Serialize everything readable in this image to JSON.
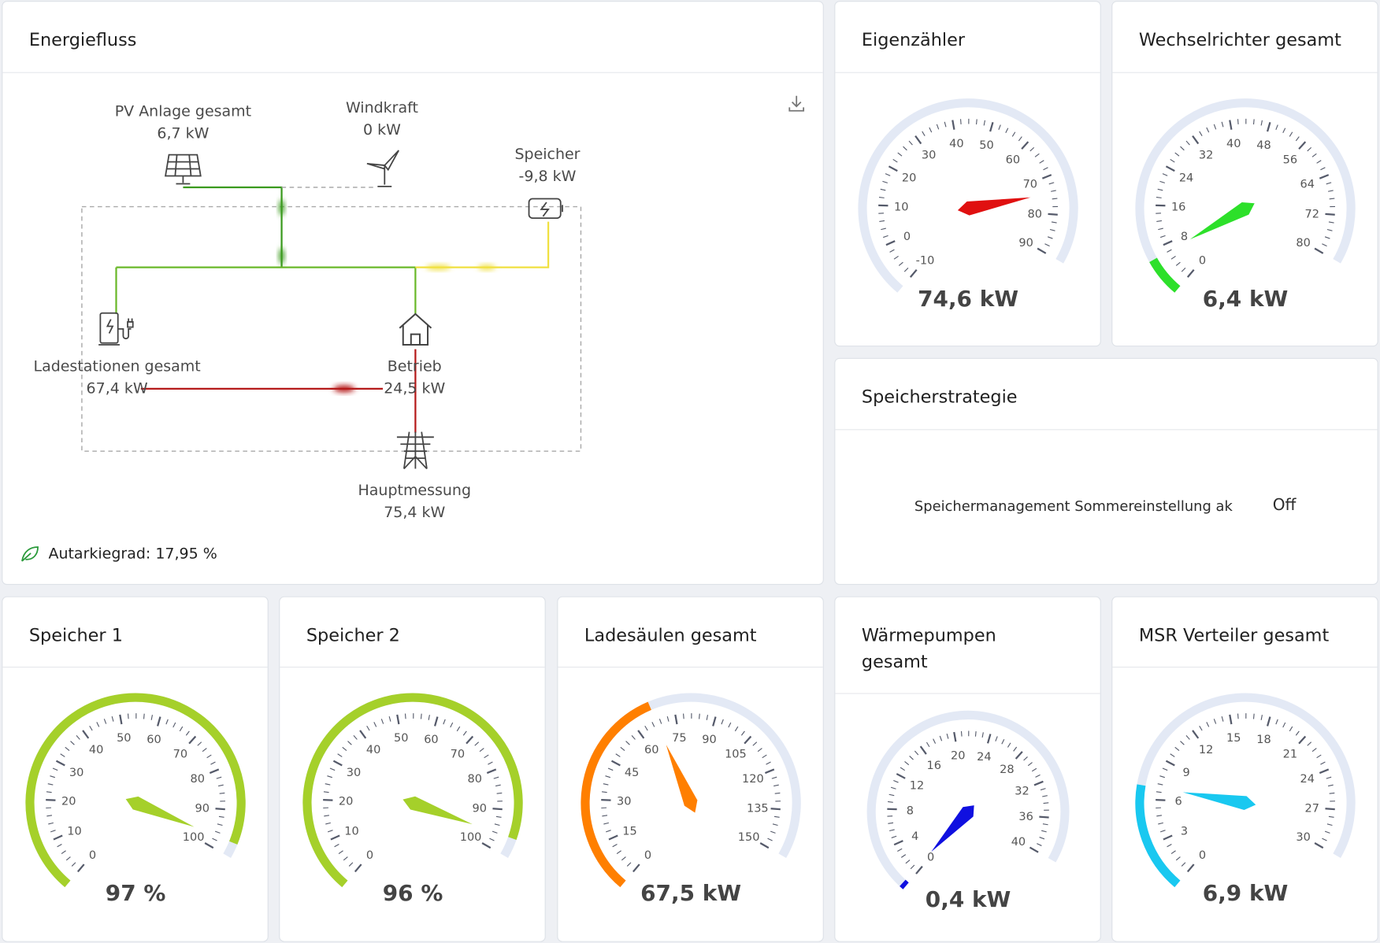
{
  "colors": {
    "accent_green": "#3a9a1e",
    "solar_green": "#6ab82a",
    "storage_yellow": "#f0e040",
    "grid_red": "#b51a1a",
    "gauge_track": "#e3e9f5"
  },
  "energy_flow": {
    "title": "Energiefluss",
    "download_icon": "download-icon",
    "nodes": {
      "pv": {
        "label": "PV Anlage gesamt",
        "value": "6,7 kW",
        "icon": "solar-panel-icon"
      },
      "wind": {
        "label": "Windkraft",
        "value": "0 kW",
        "icon": "wind-turbine-icon"
      },
      "storage": {
        "label": "Speicher",
        "value": "-9,8 kW",
        "icon": "battery-icon"
      },
      "charging": {
        "label": "Ladestationen gesamt",
        "value": "67,4 kW",
        "icon": "ev-charger-icon"
      },
      "operation": {
        "label": "Betrieb",
        "value": "24,5 kW",
        "icon": "house-icon"
      },
      "grid": {
        "label": "Hauptmessung",
        "value": "75,4 kW",
        "icon": "power-tower-icon"
      }
    },
    "autarky": "Autarkiegrad: 17,95 %"
  },
  "storage_strategy": {
    "title": "Speicherstrategie",
    "setting_label": "Speichermanagement Sommereinstellung ak",
    "setting_value": "Off"
  },
  "gauges": {
    "eigenzaehler": {
      "title": "Eigenzähler",
      "value": 74.6,
      "display": "74,6 kW",
      "min": -10,
      "max": 90,
      "step": 10,
      "needle_color": "#e01010",
      "band_color": ""
    },
    "wechselrichter": {
      "title": "Wechselrichter gesamt",
      "value": 6.4,
      "display": "6,4 kW",
      "min": 0,
      "max": 80,
      "step": 8,
      "needle_color": "#2de02a",
      "band_color": "#2de02a"
    },
    "speicher1": {
      "title": "Speicher 1",
      "value": 97,
      "display": "97 %",
      "min": 0,
      "max": 100,
      "step": 10,
      "needle_color": "#a5d02a",
      "band_color": "#a5d02a"
    },
    "speicher2": {
      "title": "Speicher 2",
      "value": 96,
      "display": "96 %",
      "min": 0,
      "max": 100,
      "step": 10,
      "needle_color": "#a5d02a",
      "band_color": "#a5d02a"
    },
    "ladesaeulen": {
      "title": "Ladesäulen gesamt",
      "value": 67.5,
      "display": "67,5 kW",
      "min": 0,
      "max": 150,
      "step": 15,
      "needle_color": "#ff7f00",
      "band_color": "#ff7f00"
    },
    "waermepumpen": {
      "title": "Wärmepumpen gesamt",
      "value": 0.4,
      "display": "0,4 kW",
      "min": 0,
      "max": 40,
      "step": 4,
      "needle_color": "#1010e0",
      "band_color": "#1010e0"
    },
    "msr": {
      "title": "MSR Verteiler gesamt",
      "value": 6.9,
      "display": "6,9 kW",
      "min": 0,
      "max": 30,
      "step": 3,
      "needle_color": "#19c8f0",
      "band_color": "#19c8f0"
    }
  }
}
